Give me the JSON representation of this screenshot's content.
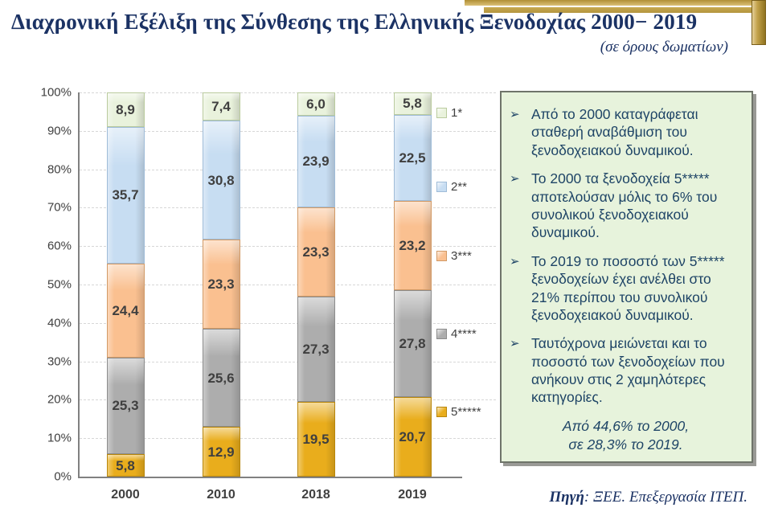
{
  "header": {
    "title": "Διαχρονική Εξέλιξη της Σύνθεσης της Ελληνικής Ξενοδοχίας 2000− 2019",
    "subtitle": "(σε όρους δωματίων)",
    "title_color": "#1b3264"
  },
  "chart_data": {
    "type": "bar",
    "stacked": true,
    "grid": "dashed-horizontal",
    "legend_position": "right",
    "categories": [
      "2000",
      "2010",
      "2018",
      "2019"
    ],
    "y_ticks": [
      "100%",
      "90%",
      "80%",
      "70%",
      "60%",
      "50%",
      "40%",
      "30%",
      "20%",
      "10%",
      "0%"
    ],
    "ylim": [
      0,
      100
    ],
    "series": [
      {
        "name": "5*****",
        "color": "#e9ad1c",
        "border": "#b8860b",
        "values": [
          5.8,
          12.9,
          19.5,
          20.7
        ],
        "labels": [
          "5,8",
          "12,9",
          "19,5",
          "20,7"
        ]
      },
      {
        "name": "4****",
        "color": "#adadad",
        "border": "#8c8c8c",
        "values": [
          25.3,
          25.6,
          27.3,
          27.8
        ],
        "labels": [
          "25,3",
          "25,6",
          "27,3",
          "27,8"
        ]
      },
      {
        "name": "3***",
        "color": "#fac090",
        "border": "#d29a66",
        "values": [
          24.4,
          23.3,
          23.3,
          23.2
        ],
        "labels": [
          "24,4",
          "23,3",
          "23,3",
          "23,2"
        ]
      },
      {
        "name": "2**",
        "color": "#c7ddf2",
        "border": "#9fbcd8",
        "values": [
          35.7,
          30.8,
          23.9,
          22.5
        ],
        "labels": [
          "35,7",
          "30,8",
          "23,9",
          "22,5"
        ]
      },
      {
        "name": "1*",
        "color": "#e9f2dc",
        "border": "#bacb9e",
        "values": [
          8.9,
          7.4,
          6.0,
          5.8
        ],
        "labels": [
          "8,9",
          "7,4",
          "6,0",
          "5,8"
        ]
      }
    ],
    "legend": [
      "1*",
      "2**",
      "3***",
      "4****",
      "5*****"
    ],
    "value_label_color": "#3f3f3f"
  },
  "notes": {
    "bullet_char": "➢",
    "bullets": [
      "Από το 2000 καταγράφεται σταθερή αναβάθμιση του ξενοδοχειακού δυναμικού.",
      "Το 2000 τα ξενοδοχεία 5***** αποτελούσαν μόλις το 6% του συνολικού ξενοδοχειακού δυναμικού.",
      "Το 2019 το ποσοστό των 5***** ξενοδοχείων έχει ανέλθει στο 21% περίπου του συνολικού ξενοδοχειακού δυναμικού.",
      "Ταυτόχρονα μειώνεται και το ποσοστό των ξενοδοχείων που ανήκουν στις 2 χαμηλότερες κατηγορίες."
    ],
    "footnote_lines": [
      "Από 44,6% το 2000,",
      "σε 28,3% το 2019."
    ],
    "bg": "#e7f3dc",
    "text_color": "#1e4466"
  },
  "source": {
    "label": "Πηγή",
    "text": ": ΞΕΕ. Επεξεργασία ΙΤΕΠ."
  },
  "colors": {
    "accent_gold": "#c2a14a",
    "navy": "#1b3264"
  }
}
